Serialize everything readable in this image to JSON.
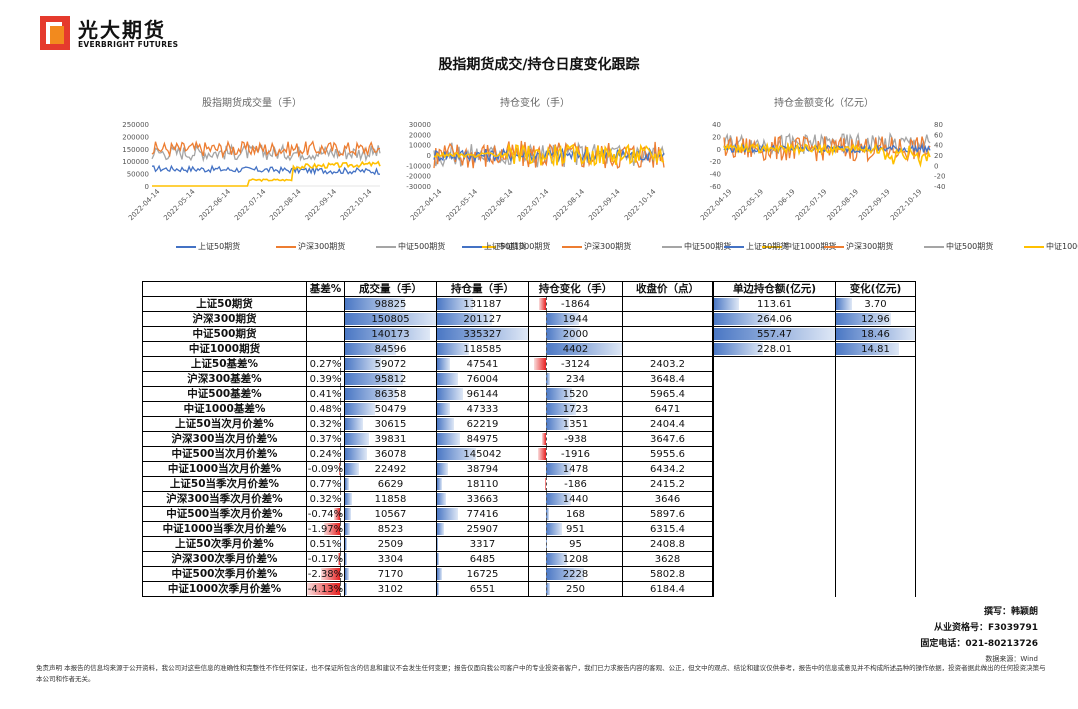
{
  "logo": {
    "cn": "光大期货",
    "en": "EVERBRIGHT FUTURES"
  },
  "title": "股指期货成交/持仓日度变化跟踪",
  "charts": [
    {
      "title": "股指期货成交量（手）",
      "yticks": [
        "250000",
        "200000",
        "150000",
        "100000",
        "50000",
        "0"
      ],
      "ymin": 0,
      "ymax": 250000,
      "xticks": [
        "2022-04-14",
        "2022-05-14",
        "2022-06-14",
        "2022-07-14",
        "2022-08-14",
        "2022-09-14",
        "2022-10-14"
      ],
      "legend": [
        "上证50期货",
        "沪深300期货",
        "中证500期货",
        "中证1000期货"
      ]
    },
    {
      "title": "持仓变化（手）",
      "yticks": [
        "30000",
        "20000",
        "10000",
        "0",
        "-10000",
        "-20000",
        "-30000"
      ],
      "ymin": -30000,
      "ymax": 30000,
      "xticks": [
        "2022-04-14",
        "2022-05-14",
        "2022-06-14",
        "2022-07-14",
        "2022-08-14",
        "2022-09-14",
        "2022-10-14"
      ],
      "legend": [
        "上证50期货",
        "沪深300期货",
        "中证500期货",
        "中证1000期货"
      ]
    },
    {
      "title": "持仓金额变化（亿元）",
      "yticks": [
        "40",
        "20",
        "0",
        "-20",
        "-40",
        "-60"
      ],
      "ymin": -60,
      "ymax": 40,
      "yticks_right": [
        "80",
        "60",
        "40",
        "20",
        "0",
        "-20",
        "-40"
      ],
      "xticks": [
        "2022-04-19",
        "2022-05-19",
        "2022-06-19",
        "2022-07-19",
        "2022-08-19",
        "2022-09-19",
        "2022-10-19"
      ],
      "legend": [
        "上证50期货",
        "沪深300期货",
        "中证500期货",
        "中证1000期货(右)"
      ]
    }
  ],
  "colors": {
    "sz50": "#4472c4",
    "hs300": "#ed7d31",
    "zz500": "#a5a5a5",
    "zz1000": "#ffc000"
  },
  "table": {
    "headers": [
      "",
      "基差%",
      "成交量（手）",
      "持仓量（手）",
      "持仓变化（手）",
      "收盘价（点）",
      "",
      "单边持仓额(亿元)",
      "变化(亿元)"
    ],
    "rows": [
      [
        "上证50期货",
        "",
        "98825",
        "131187",
        "-1864",
        "",
        "",
        "113.61",
        "3.70"
      ],
      [
        "沪深300期货",
        "",
        "150805",
        "201127",
        "1944",
        "",
        "",
        "264.06",
        "12.96"
      ],
      [
        "中证500期货",
        "",
        "140173",
        "335327",
        "2000",
        "",
        "",
        "557.47",
        "18.46"
      ],
      [
        "中证1000期货",
        "",
        "84596",
        "118585",
        "4402",
        "",
        "",
        "228.01",
        "14.81"
      ],
      [
        "上证50基差%",
        "0.27%",
        "59072",
        "47541",
        "-3124",
        "2403.2",
        "",
        "",
        ""
      ],
      [
        "沪深300基差%",
        "0.39%",
        "95812",
        "76004",
        "234",
        "3648.4",
        "",
        "",
        ""
      ],
      [
        "中证500基差%",
        "0.41%",
        "86358",
        "96144",
        "1520",
        "5965.4",
        "",
        "",
        ""
      ],
      [
        "中证1000基差%",
        "0.48%",
        "50479",
        "47333",
        "1723",
        "6471",
        "",
        "",
        ""
      ],
      [
        "上证50当次月价差%",
        "0.32%",
        "30615",
        "62219",
        "1351",
        "2404.4",
        "",
        "",
        ""
      ],
      [
        "沪深300当次月价差%",
        "0.37%",
        "39831",
        "84975",
        "-938",
        "3647.6",
        "",
        "",
        ""
      ],
      [
        "中证500当次月价差%",
        "0.24%",
        "36078",
        "145042",
        "-1916",
        "5955.6",
        "",
        "",
        ""
      ],
      [
        "中证1000当次月价差%",
        "-0.09%",
        "22492",
        "38794",
        "1478",
        "6434.2",
        "",
        "",
        ""
      ],
      [
        "上证50当季次月价差%",
        "0.77%",
        "6629",
        "18110",
        "-186",
        "2415.2",
        "",
        "",
        ""
      ],
      [
        "沪深300当季次月价差%",
        "0.32%",
        "11858",
        "33663",
        "1440",
        "3646",
        "",
        "",
        ""
      ],
      [
        "中证500当季次月价差%",
        "-0.74%",
        "10567",
        "77416",
        "168",
        "5897.6",
        "",
        "",
        ""
      ],
      [
        "中证1000当季次月价差%",
        "-1.97%",
        "8523",
        "25907",
        "951",
        "6315.4",
        "",
        "",
        ""
      ],
      [
        "上证50次季月价差%",
        "0.51%",
        "2509",
        "3317",
        "95",
        "2408.8",
        "",
        "",
        ""
      ],
      [
        "沪深300次季月价差%",
        "-0.17%",
        "3304",
        "6485",
        "1208",
        "3628",
        "",
        "",
        ""
      ],
      [
        "中证500次季月价差%",
        "-2.38%",
        "7170",
        "16725",
        "2228",
        "5802.8",
        "",
        "",
        ""
      ],
      [
        "中证1000次季月价差%",
        "-4.13%",
        "3102",
        "6551",
        "250",
        "6184.4",
        "",
        "",
        ""
      ]
    ]
  },
  "footer": {
    "author": "撰写：韩颖朗",
    "license": "从业资格号：F3039791",
    "phone": "固定电话：021-80213726",
    "source": "数据来源：Wind",
    "disclaimer": "免责声明   本报告的信息均来源于公开资料，我公司对这些信息的准确性和完整性不作任何保证，也不保证所包含的信息和建议不会发生任何变更；报告仅面向我公司客户中的专业投资者客户，我们已力求报告内容的客观、公正，但文中的观点、结论和建议仅供参考，报告中的信息或意见并不构成所述品种的操作依据，投资者据此做出的任何投资决策与本公司和作者无关。"
  }
}
